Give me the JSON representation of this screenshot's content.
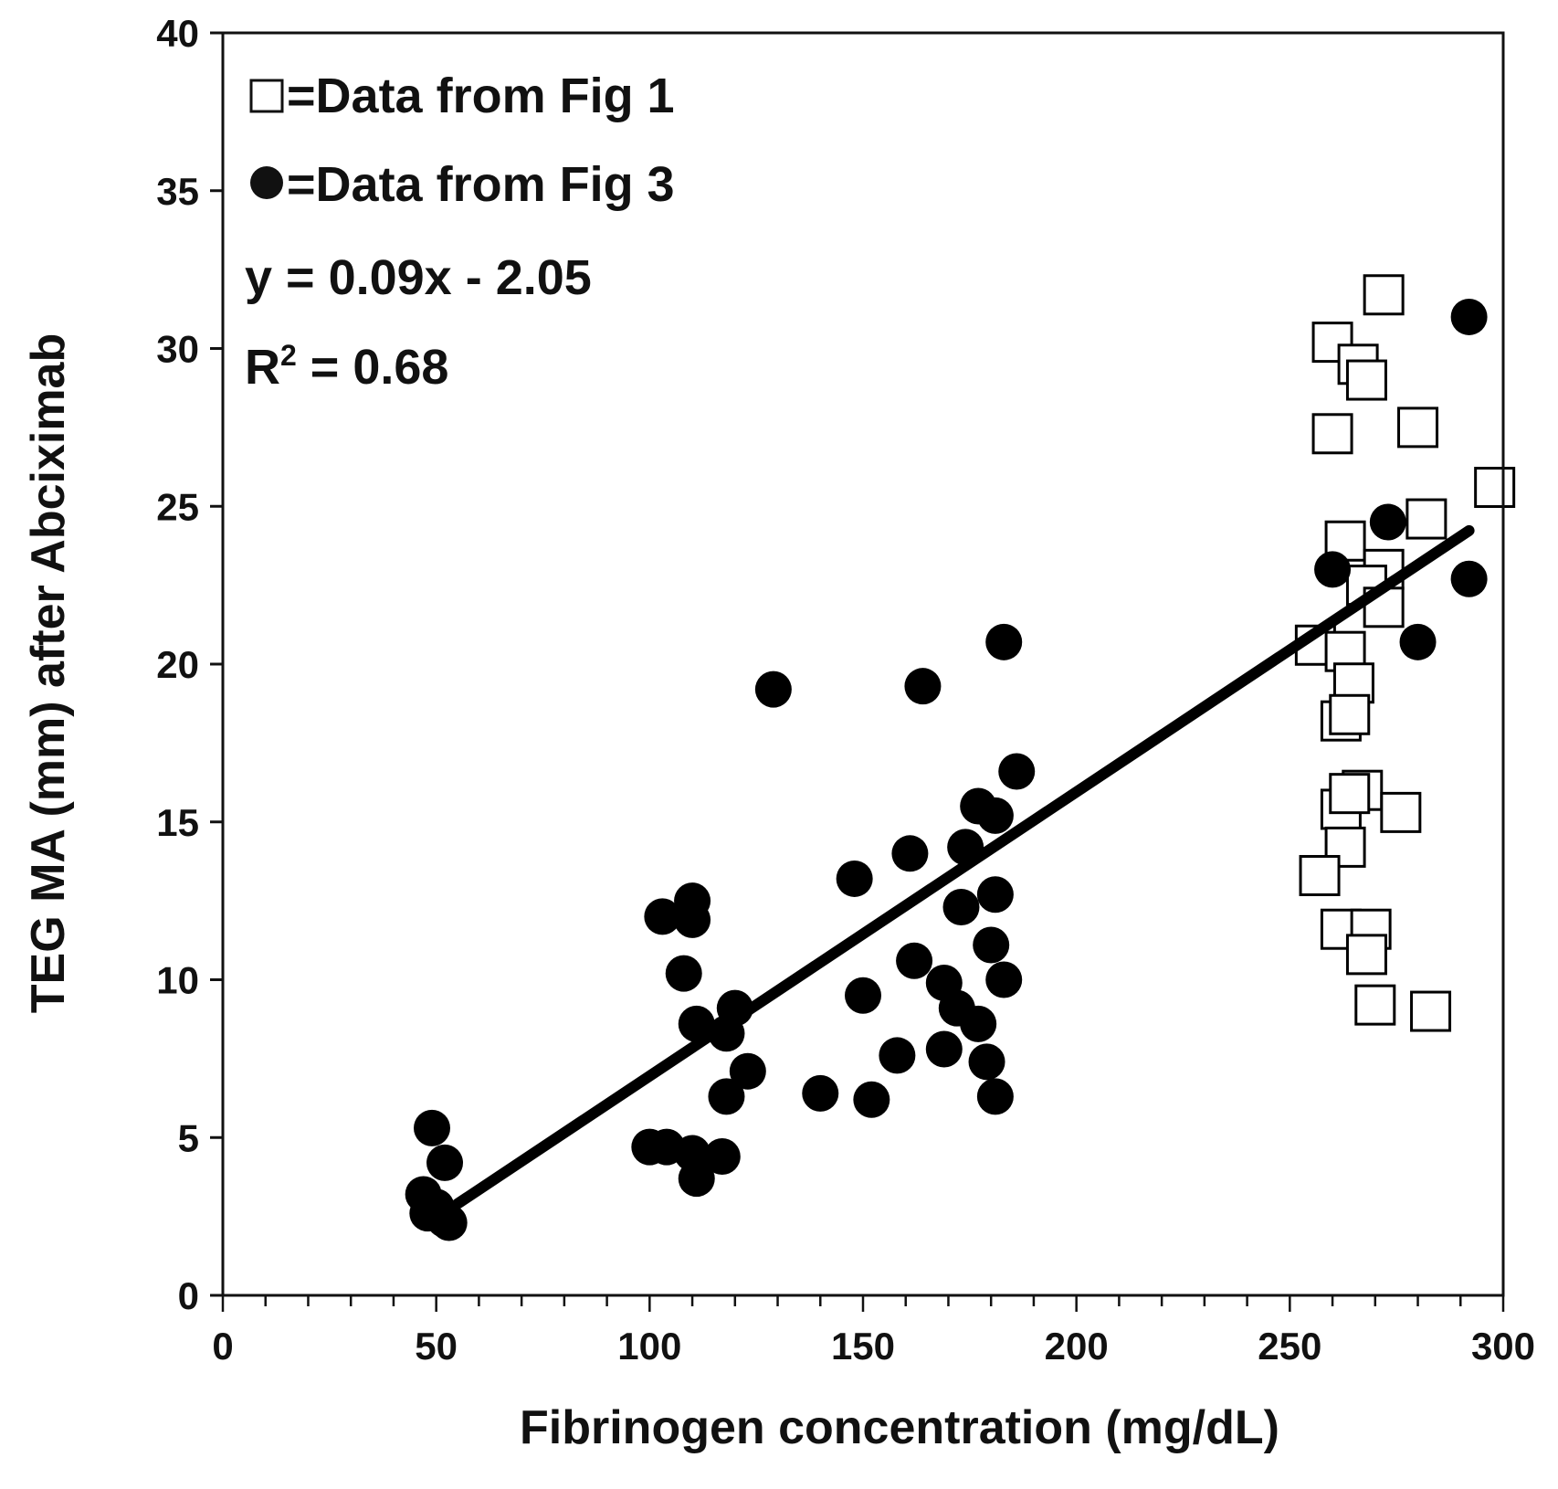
{
  "chart_data": {
    "type": "scatter",
    "xlabel": "Fibrinogen concentration (mg/dL)",
    "ylabel": "TEG MA (mm) after Abciximab",
    "xlim": [
      0,
      300
    ],
    "ylim": [
      0,
      40
    ],
    "xticks": [
      0,
      50,
      100,
      150,
      200,
      250,
      300
    ],
    "xtick_labels": [
      "0",
      "50",
      "100",
      "150",
      "200",
      "250",
      "300"
    ],
    "x_minor_step": 10,
    "yticks": [
      0,
      5,
      10,
      15,
      20,
      25,
      30,
      35,
      40
    ],
    "ytick_labels": [
      "0",
      "5",
      "10",
      "15",
      "20",
      "25",
      "30",
      "35",
      "40"
    ],
    "grid": false,
    "legend_position": "top-left",
    "legend": [
      {
        "marker": "open-square",
        "symbol": "□",
        "text": "=Data from Fig 1"
      },
      {
        "marker": "filled-circle",
        "symbol": "●",
        "text": "=Data from Fig 3"
      }
    ],
    "annotations": {
      "equation": "y = 0.09x - 2.05",
      "r2_prefix": "R",
      "r2_sup": "2",
      "r2_value": " = 0.68"
    },
    "series": [
      {
        "marker": "open-square",
        "color": "#ffffff",
        "edge": "#000000",
        "points": [
          [
            272,
            31.7
          ],
          [
            260,
            30.2
          ],
          [
            266,
            29.5
          ],
          [
            268,
            29.0
          ],
          [
            260,
            27.3
          ],
          [
            280,
            27.5
          ],
          [
            298,
            25.6
          ],
          [
            282,
            24.6
          ],
          [
            263,
            23.9
          ],
          [
            272,
            23.0
          ],
          [
            268,
            22.5
          ],
          [
            272,
            21.8
          ],
          [
            256,
            20.6
          ],
          [
            263,
            20.4
          ],
          [
            265,
            19.4
          ],
          [
            262,
            18.2
          ],
          [
            264,
            18.4
          ],
          [
            262,
            15.4
          ],
          [
            267,
            16.0
          ],
          [
            264,
            15.9
          ],
          [
            276,
            15.3
          ],
          [
            263,
            14.2
          ],
          [
            257,
            13.3
          ],
          [
            262,
            11.6
          ],
          [
            269,
            11.6
          ],
          [
            268,
            10.8
          ],
          [
            270,
            9.2
          ],
          [
            283,
            9.0
          ]
        ]
      },
      {
        "marker": "filled-circle",
        "color": "#000000",
        "points": [
          [
            292,
            31.0
          ],
          [
            273,
            24.5
          ],
          [
            260,
            23.0
          ],
          [
            292,
            22.7
          ],
          [
            280,
            20.7
          ],
          [
            183,
            20.7
          ],
          [
            164,
            19.3
          ],
          [
            129,
            19.2
          ],
          [
            186,
            16.6
          ],
          [
            177,
            15.5
          ],
          [
            181,
            15.2
          ],
          [
            174,
            14.2
          ],
          [
            161,
            14.0
          ],
          [
            148,
            13.2
          ],
          [
            181,
            12.7
          ],
          [
            110,
            12.5
          ],
          [
            103,
            12.0
          ],
          [
            110,
            11.9
          ],
          [
            173,
            12.3
          ],
          [
            180,
            11.1
          ],
          [
            108,
            10.2
          ],
          [
            162,
            10.6
          ],
          [
            169,
            9.9
          ],
          [
            183,
            10.0
          ],
          [
            150,
            9.5
          ],
          [
            172,
            9.1
          ],
          [
            120,
            9.1
          ],
          [
            111,
            8.6
          ],
          [
            177,
            8.6
          ],
          [
            118,
            8.3
          ],
          [
            169,
            7.8
          ],
          [
            158,
            7.6
          ],
          [
            179,
            7.4
          ],
          [
            123,
            7.1
          ],
          [
            140,
            6.4
          ],
          [
            181,
            6.3
          ],
          [
            118,
            6.3
          ],
          [
            152,
            6.2
          ],
          [
            100,
            4.7
          ],
          [
            104,
            4.7
          ],
          [
            110,
            4.5
          ],
          [
            117,
            4.4
          ],
          [
            111,
            3.7
          ],
          [
            49,
            5.3
          ],
          [
            52,
            4.2
          ],
          [
            47,
            3.2
          ],
          [
            48,
            2.6
          ],
          [
            50,
            2.8
          ],
          [
            52,
            2.4
          ],
          [
            53,
            2.3
          ]
        ]
      }
    ],
    "trendline": {
      "slope": 0.09,
      "intercept": -2.05,
      "x_range": [
        55,
        292
      ]
    }
  }
}
